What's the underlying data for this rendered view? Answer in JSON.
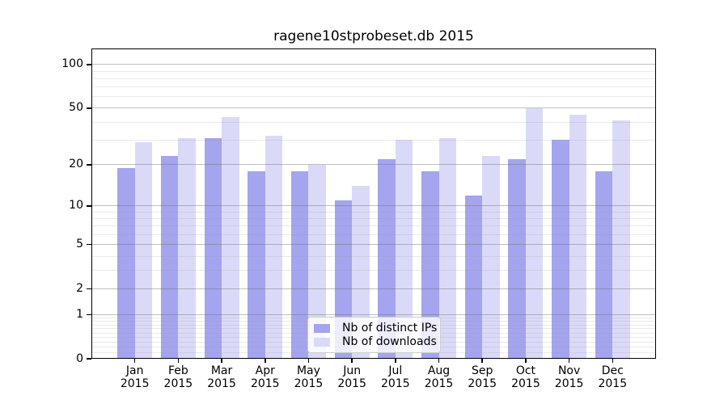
{
  "title": "ragene10stprobeset.db 2015",
  "legend": {
    "items": [
      {
        "label": "Nb of distinct IPs",
        "color": "#a4a4ef"
      },
      {
        "label": "Nb of downloads",
        "color": "#dadaf8"
      }
    ]
  },
  "axes": {
    "y_ticks": [
      {
        "label": "100",
        "value": 100
      },
      {
        "label": "50",
        "value": 50
      },
      {
        "label": "20",
        "value": 20
      },
      {
        "label": "10",
        "value": 10
      },
      {
        "label": "5",
        "value": 5
      },
      {
        "label": "2",
        "value": 2
      },
      {
        "label": "1",
        "value": 1
      },
      {
        "label": "0",
        "value": 0
      }
    ],
    "y_minor_values": [
      0.1,
      0.2,
      0.3,
      0.4,
      0.5,
      0.6,
      0.7,
      0.8,
      0.9,
      3,
      4,
      6,
      7,
      8,
      9,
      30,
      40,
      60,
      70,
      80,
      90
    ],
    "x_month_labels": [
      "Jan",
      "Feb",
      "Mar",
      "Apr",
      "May",
      "Jun",
      "Jul",
      "Aug",
      "Sep",
      "Oct",
      "Nov",
      "Dec"
    ],
    "x_year_label": "2015"
  },
  "chart_data": {
    "type": "bar",
    "title": "ragene10stprobeset.db 2015",
    "y_scale": "log10(1+y)",
    "ylim": [
      0,
      128
    ],
    "y_ticks": [
      0,
      1,
      2,
      5,
      10,
      20,
      50,
      100
    ],
    "grid": true,
    "legend_position": "lower center",
    "categories": [
      "Jan 2015",
      "Feb 2015",
      "Mar 2015",
      "Apr 2015",
      "May 2015",
      "Jun 2015",
      "Jul 2015",
      "Aug 2015",
      "Sep 2015",
      "Oct 2015",
      "Nov 2015",
      "Dec 2015"
    ],
    "series": [
      {
        "name": "Nb of distinct IPs",
        "color": "#a4a4ef",
        "values": [
          19,
          23,
          31,
          18,
          18,
          11,
          22,
          18,
          12,
          22,
          30,
          18
        ]
      },
      {
        "name": "Nb of downloads",
        "color": "#dadaf8",
        "values": [
          29,
          31,
          43,
          32,
          20,
          14,
          30,
          31,
          23,
          50,
          45,
          41
        ]
      }
    ]
  }
}
